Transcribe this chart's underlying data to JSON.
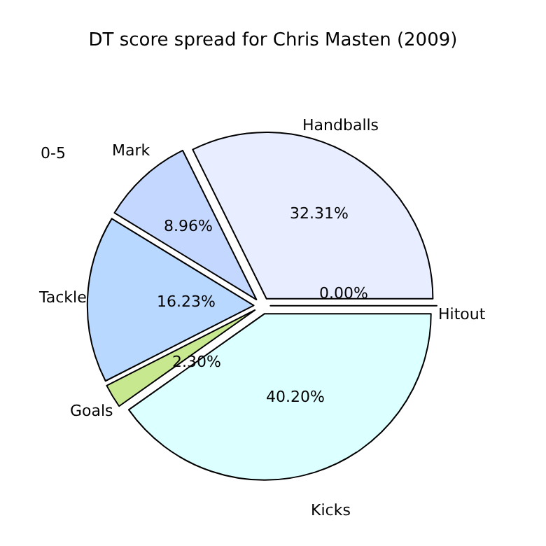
{
  "chart_data": {
    "type": "pie",
    "title": "DT score spread for Chris Masten (2009)",
    "categories": [
      "Hitout",
      "Handballs",
      "Mark",
      "Tackle",
      "Goals",
      "Kicks"
    ],
    "values": [
      0.0,
      32.31,
      8.96,
      16.23,
      2.3,
      40.2
    ],
    "value_labels": [
      "0.00%",
      "32.31%",
      "8.96%",
      "16.23%",
      "2.30%",
      "40.20%"
    ],
    "colors": [
      "#ffffff",
      "#e8eeff",
      "#c4d8ff",
      "#b8d8ff",
      "#c8e890",
      "#dcffff"
    ],
    "annotations": [
      "0-5"
    ]
  }
}
